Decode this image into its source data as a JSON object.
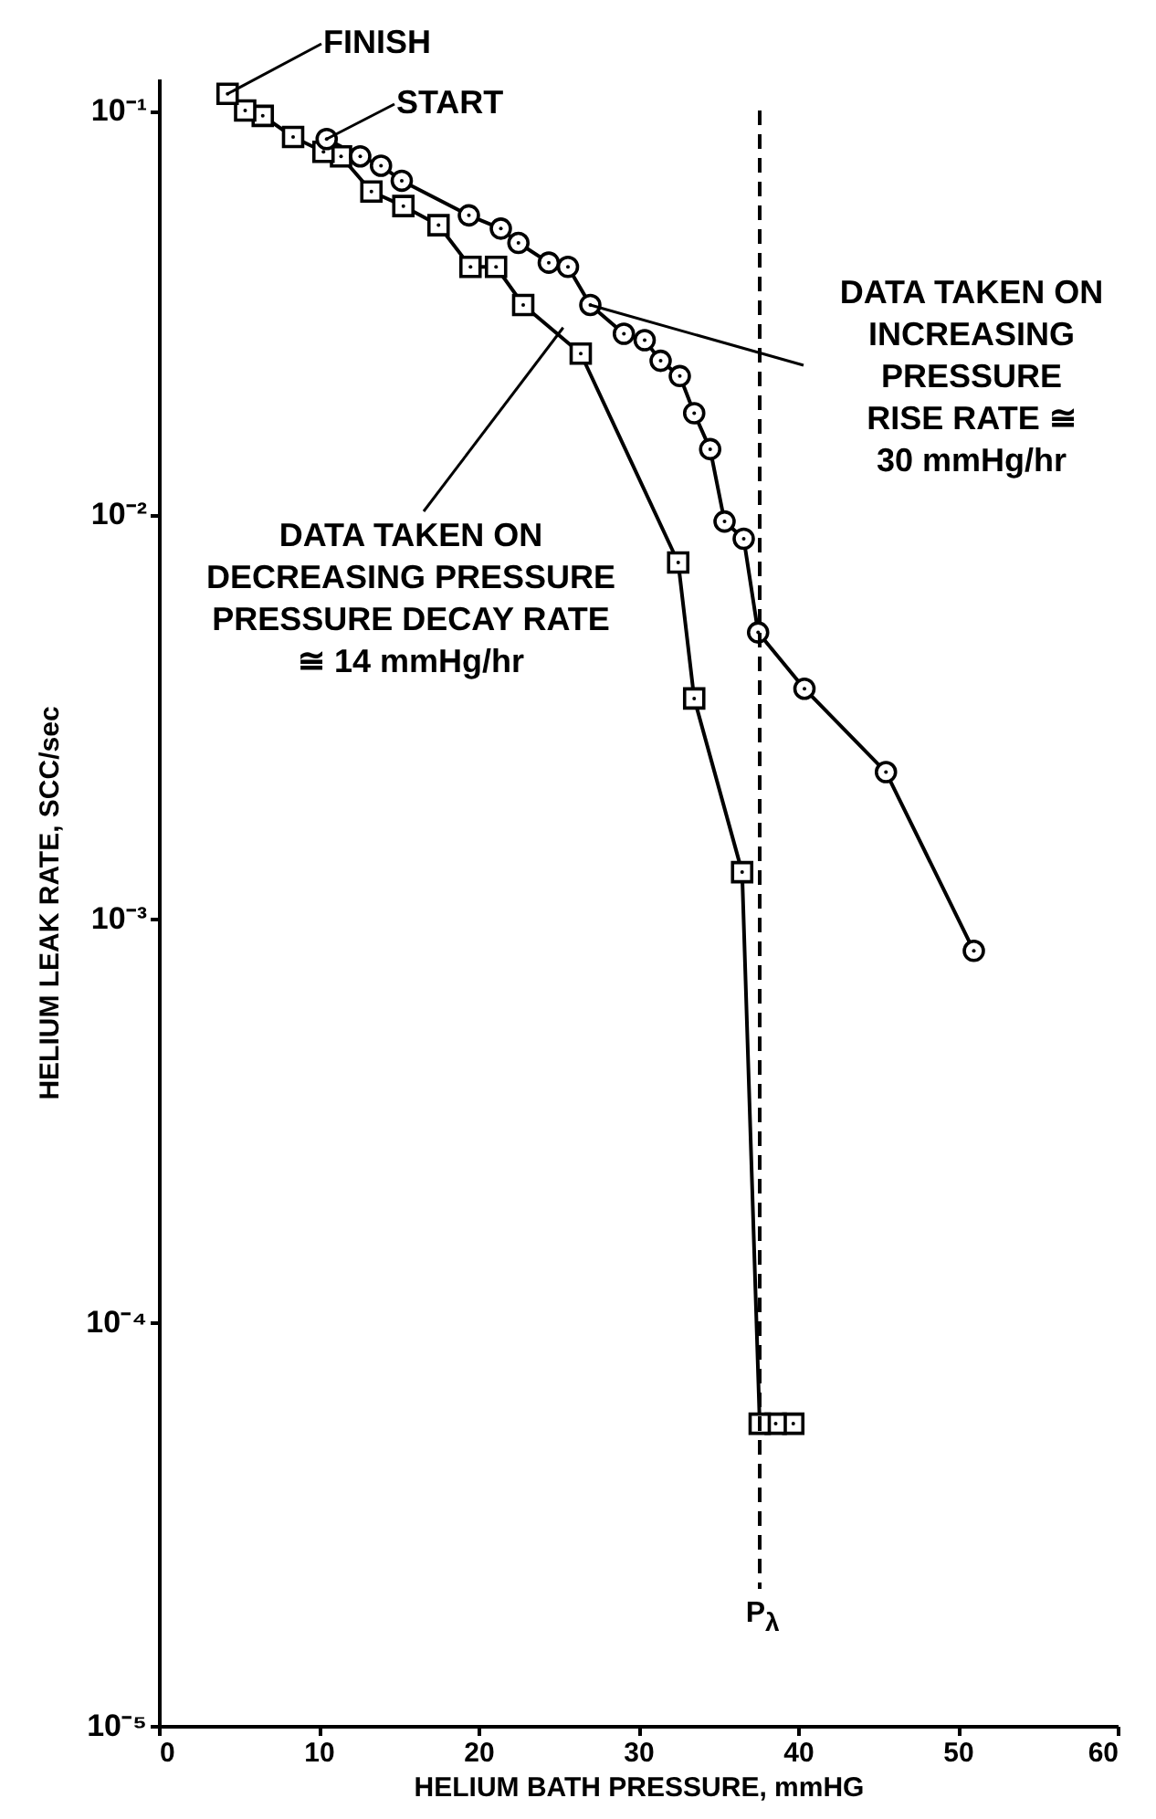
{
  "chart_data": {
    "type": "line",
    "xlabel": "HELIUM BATH PRESSURE, mmHG",
    "ylabel": "HELIUM LEAK RATE, SCC/sec",
    "log": "y",
    "xlim": [
      0,
      60
    ],
    "xticks": [
      0,
      10,
      20,
      30,
      40,
      50,
      60
    ],
    "ylim": [
      1e-05,
      0.12
    ],
    "yticks": [
      {
        "value": 0.1,
        "label": "10⁻¹"
      },
      {
        "value": 0.01,
        "label": "10⁻²"
      },
      {
        "value": 0.001,
        "label": "10⁻³"
      },
      {
        "value": 0.0001,
        "label": "10⁻⁴"
      },
      {
        "value": 1e-05,
        "label": "10⁻⁵"
      }
    ],
    "grid": false,
    "line_style": "solid",
    "series": [
      {
        "marker": "circle",
        "color": "#000000",
        "x": [
          10.5,
          12.6,
          13.9,
          15.2,
          19.4,
          21.4,
          22.5,
          24.4,
          25.6,
          27.0,
          29.1,
          30.4,
          31.4,
          32.6,
          33.5,
          34.5,
          35.4,
          36.6,
          37.5,
          40.4,
          45.5,
          51.0
        ],
        "values": [
          0.085,
          0.077,
          0.073,
          0.067,
          0.055,
          0.051,
          0.047,
          0.042,
          0.041,
          0.033,
          0.028,
          0.027,
          0.024,
          0.022,
          0.0178,
          0.0145,
          0.0096,
          0.0087,
          0.0051,
          0.0037,
          0.0023,
          0.00083
        ]
      },
      {
        "marker": "square",
        "color": "#000000",
        "x": [
          39.7,
          38.6,
          37.6,
          36.5,
          33.5,
          32.5,
          26.4,
          22.8,
          21.1,
          19.5,
          17.5,
          15.3,
          13.3,
          11.4,
          10.3,
          8.4,
          6.5,
          5.4,
          4.3
        ],
        "values": [
          5.6e-05,
          5.6e-05,
          5.6e-05,
          0.0013,
          0.0035,
          0.0076,
          0.025,
          0.033,
          0.041,
          0.041,
          0.052,
          0.058,
          0.063,
          0.077,
          0.079,
          0.086,
          0.097,
          0.1,
          0.11
        ]
      }
    ],
    "ref_lines": [
      {
        "axis": "x",
        "value": 37.6,
        "label": "P$_{λ}$",
        "line_style": "dashed",
        "color": "#000000"
      }
    ],
    "annotations": [
      {
        "text": "FINISH",
        "x": 4.3,
        "y": 0.11
      },
      {
        "text": "START",
        "x": 10.5,
        "y": 0.085
      },
      {
        "text": "DATA TAKEN ON\nINCREASING\nPRESSURE\nRISE RATE ≅\n30 mmHg/hr",
        "x": 27.0,
        "y": 0.033
      },
      {
        "text": "DATA TAKEN ON\nDECREASING PRESSURE\nPRESSURE DECAY RATE\n≅ 14 mmHg/hr",
        "x": 25.3,
        "y": 0.029
      }
    ]
  }
}
